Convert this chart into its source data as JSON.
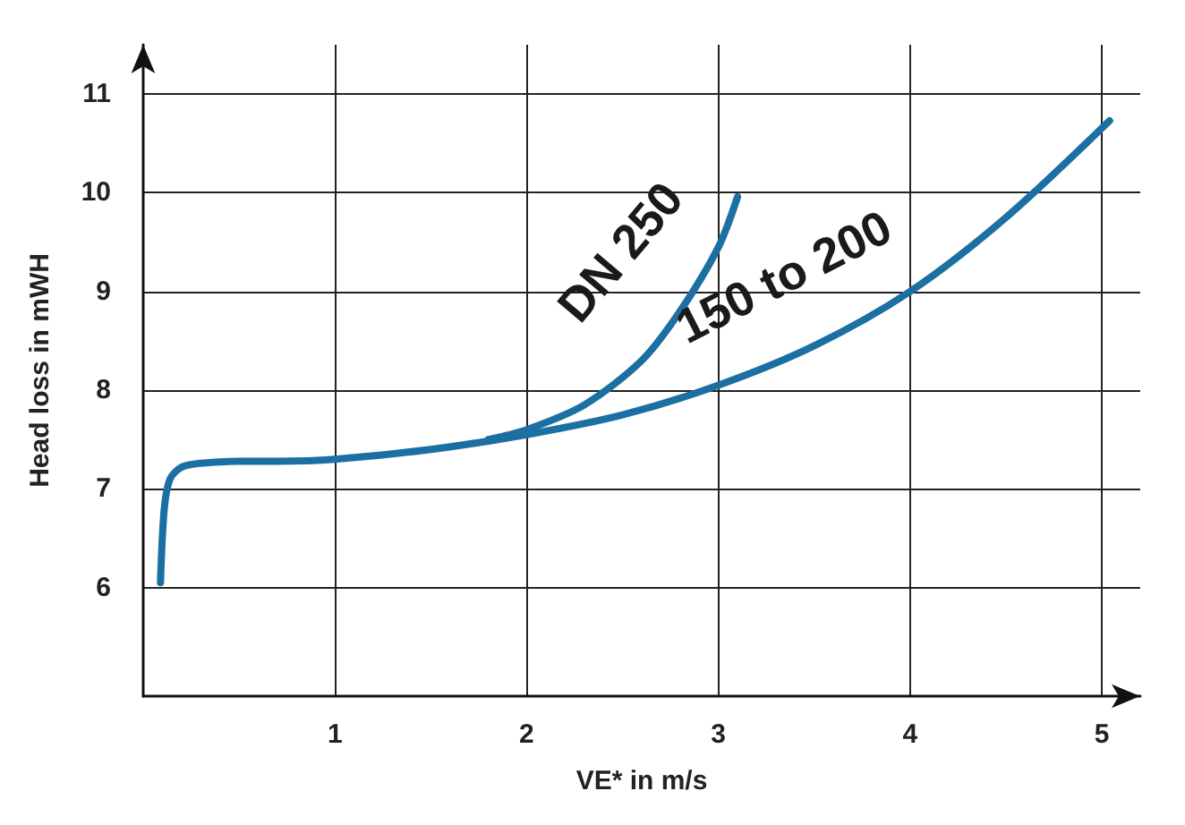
{
  "chart_data": {
    "type": "line",
    "xlabel": "VE* in m/s",
    "ylabel": "Head loss in mWH",
    "xlim": [
      0,
      5.2
    ],
    "ylim": [
      4.9,
      11.5
    ],
    "xticks": [
      1,
      2,
      3,
      4,
      5
    ],
    "yticks": [
      6,
      7,
      8,
      9,
      10,
      11
    ],
    "grid": true,
    "marker": "none",
    "line_style": "solid",
    "series": [
      {
        "name": "150 to 200",
        "color": "#1b6fa3",
        "x": [
          0.09,
          0.11,
          0.14,
          0.2,
          0.3,
          0.5,
          0.7,
          1,
          1.5,
          2,
          2.5,
          3,
          3.5,
          4,
          4.5,
          5.04
        ],
        "values": [
          6.05,
          6.8,
          7.1,
          7.22,
          7.26,
          7.28,
          7.28,
          7.3,
          7.4,
          7.55,
          7.75,
          8.05,
          8.45,
          9.0,
          9.75,
          10.73
        ]
      },
      {
        "name": "DN 250",
        "color": "#1b6fa3",
        "x": [
          1.8,
          2,
          2.3,
          2.6,
          2.8,
          3,
          3.1
        ],
        "values": [
          7.5,
          7.6,
          7.85,
          8.3,
          8.8,
          9.45,
          9.96
        ]
      }
    ]
  }
}
